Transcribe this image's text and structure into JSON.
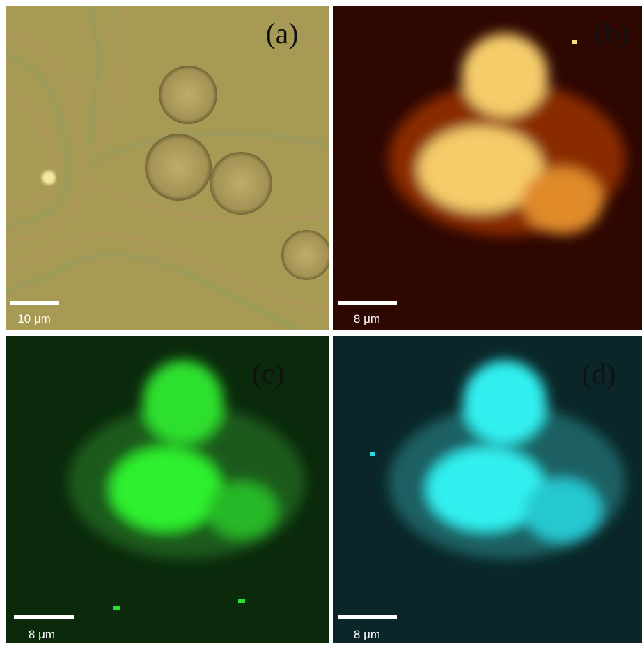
{
  "panels": [
    {
      "label": "(a)",
      "scale_bar": "10 μm"
    },
    {
      "label": "(b)",
      "scale_bar": "8 μm"
    },
    {
      "label": "(c)",
      "scale_bar": "8 μm"
    },
    {
      "label": "(d)",
      "scale_bar": "8 μm"
    }
  ]
}
